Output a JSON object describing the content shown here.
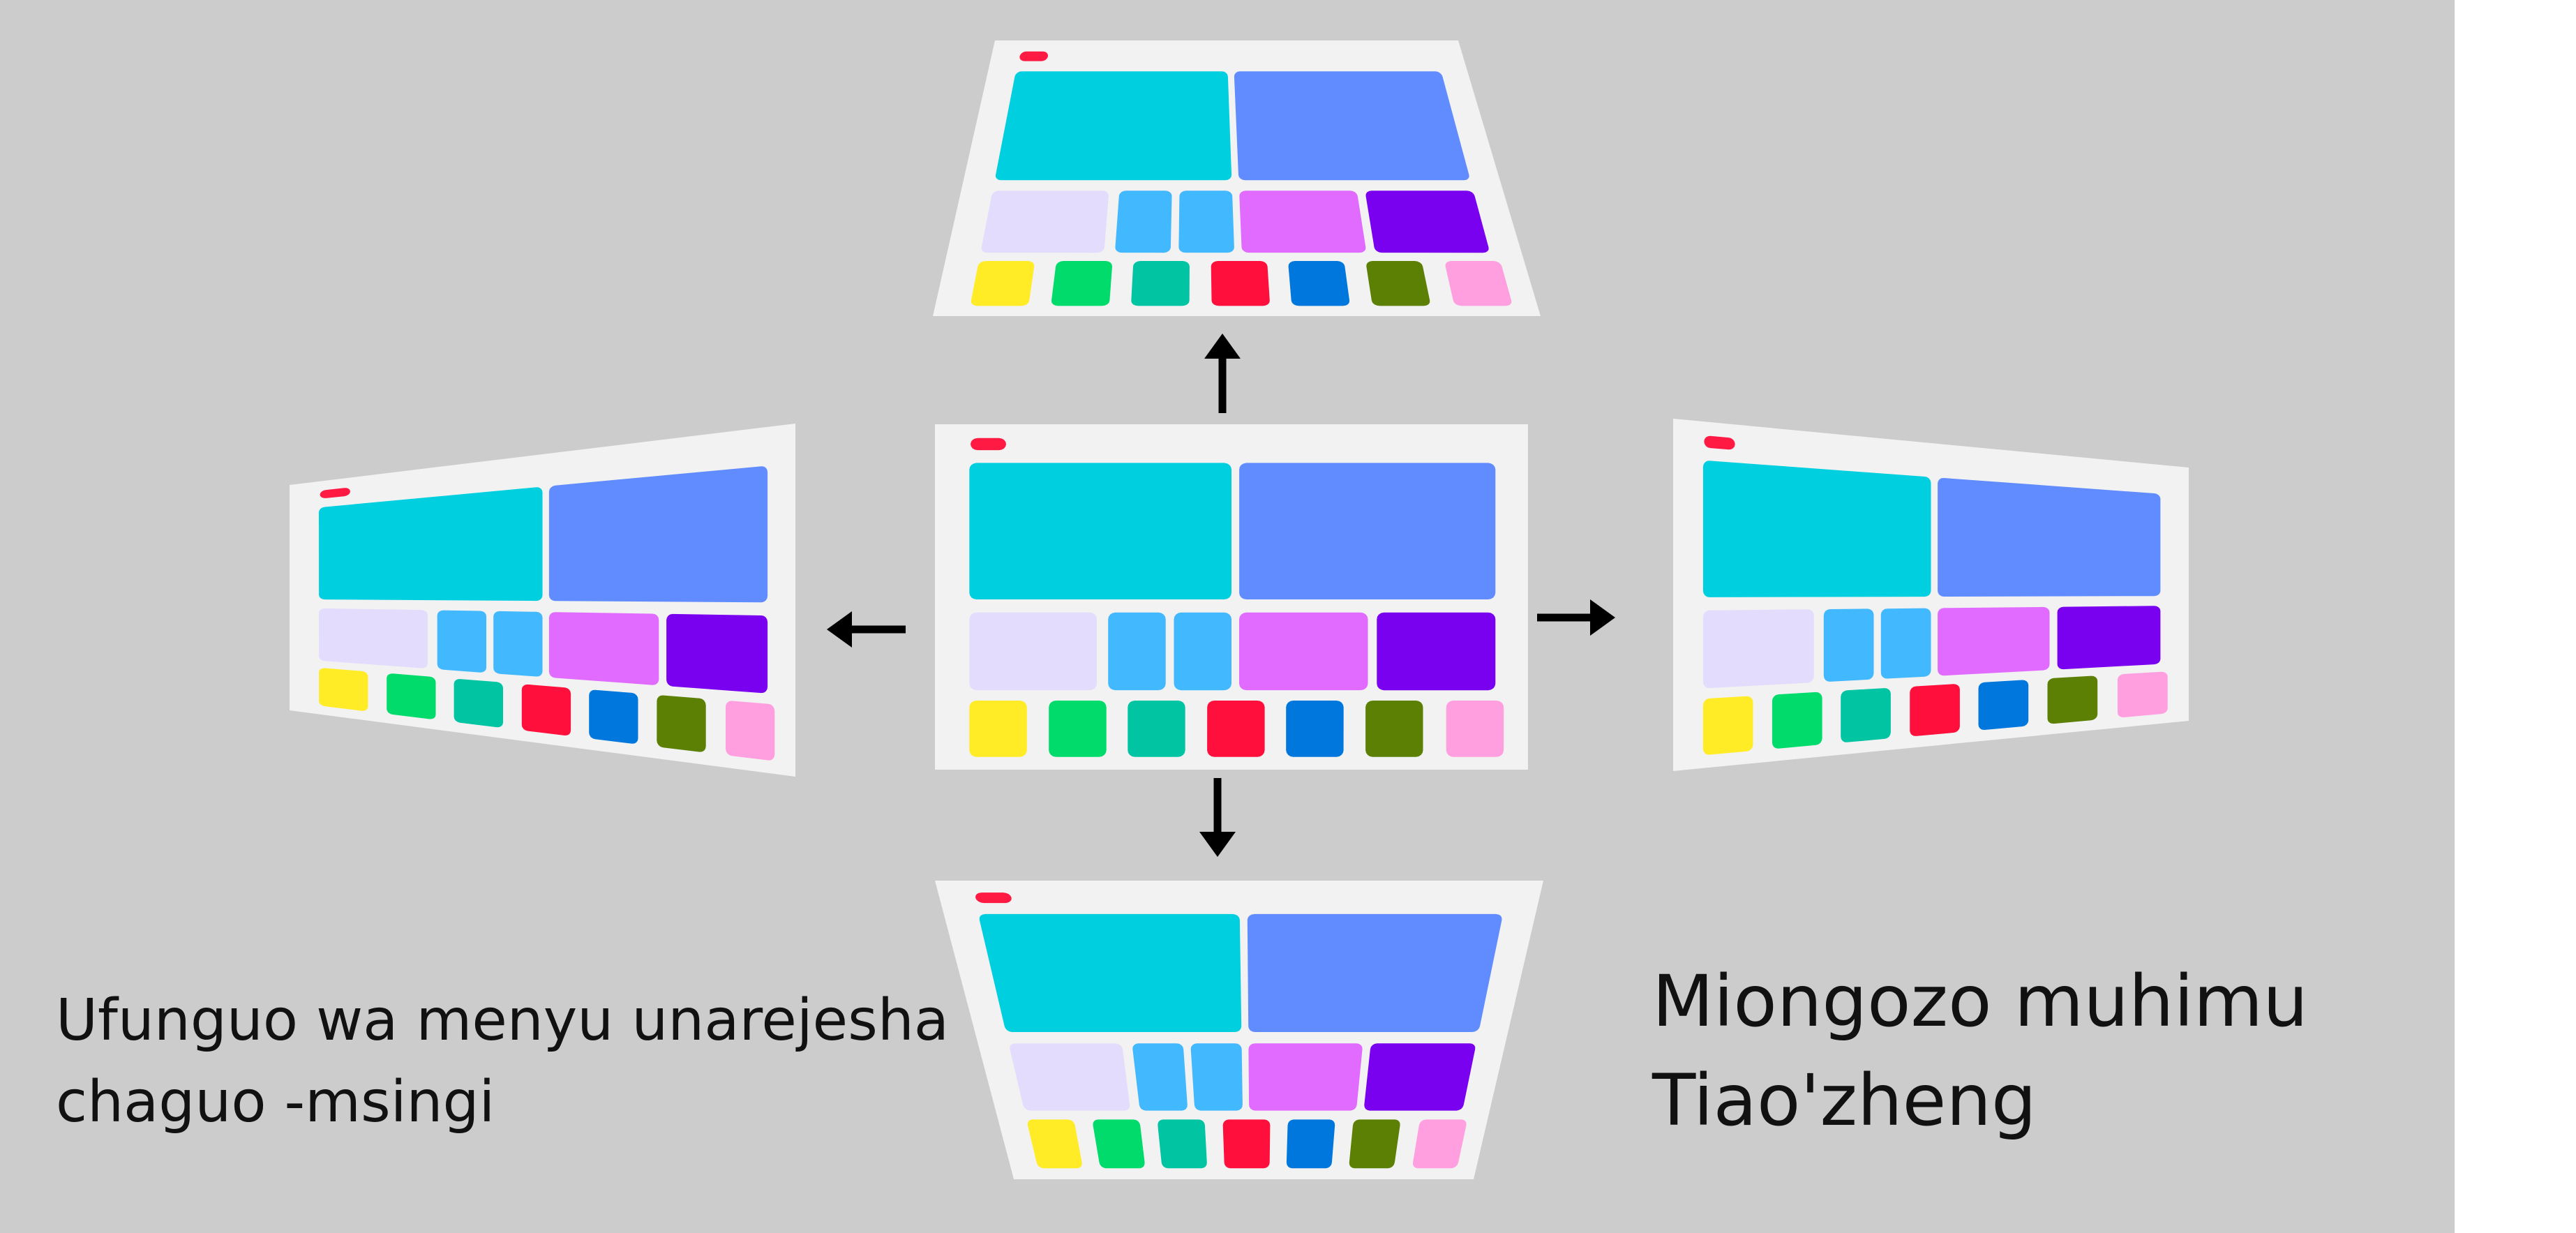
{
  "colors": {
    "background": "#cccccc",
    "right_margin": "#ffffff",
    "screen": "#f2f2f2",
    "indicator": "#ff1a44",
    "arrow": "#000000",
    "text": "#111111",
    "tiles": {
      "cyan": "#00cfe0",
      "periwinkle": "#608cff",
      "lavender": "#e4dcfc",
      "sky": "#42b8ff",
      "pink_magenta": "#e16bff",
      "violet": "#7a00f0",
      "yellow": "#ffec27",
      "green": "#00db6b",
      "teal": "#00c4a2",
      "red": "#ff0f3c",
      "blue": "#0077dd",
      "olive": "#5b8004",
      "light_pink": "#ff9fe0"
    }
  },
  "layout_tiles": [
    {
      "color": "cyan",
      "row": 1
    },
    {
      "color": "periwinkle",
      "row": 1
    },
    {
      "color": "lavender",
      "row": 2
    },
    {
      "color": "sky",
      "row": 2
    },
    {
      "color": "sky",
      "row": 2
    },
    {
      "color": "pink_magenta",
      "row": 2
    },
    {
      "color": "violet",
      "row": 2
    },
    {
      "color": "yellow",
      "row": 3
    },
    {
      "color": "green",
      "row": 3
    },
    {
      "color": "teal",
      "row": 3
    },
    {
      "color": "red",
      "row": 3
    },
    {
      "color": "blue",
      "row": 3
    },
    {
      "color": "olive",
      "row": 3
    },
    {
      "color": "light_pink",
      "row": 3
    }
  ],
  "views": [
    {
      "id": "center",
      "tilt": "none"
    },
    {
      "id": "top",
      "tilt": "up"
    },
    {
      "id": "bottom",
      "tilt": "down"
    },
    {
      "id": "left",
      "tilt": "left"
    },
    {
      "id": "right",
      "tilt": "right"
    }
  ],
  "arrows": [
    "up",
    "down",
    "left",
    "right"
  ],
  "caption_left": {
    "line1": "Ufunguo wa menyu unarejesha",
    "line2": "chaguo -msingi"
  },
  "caption_right": {
    "line1": "Miongozo muhimu",
    "line2": "Tiao'zheng"
  }
}
